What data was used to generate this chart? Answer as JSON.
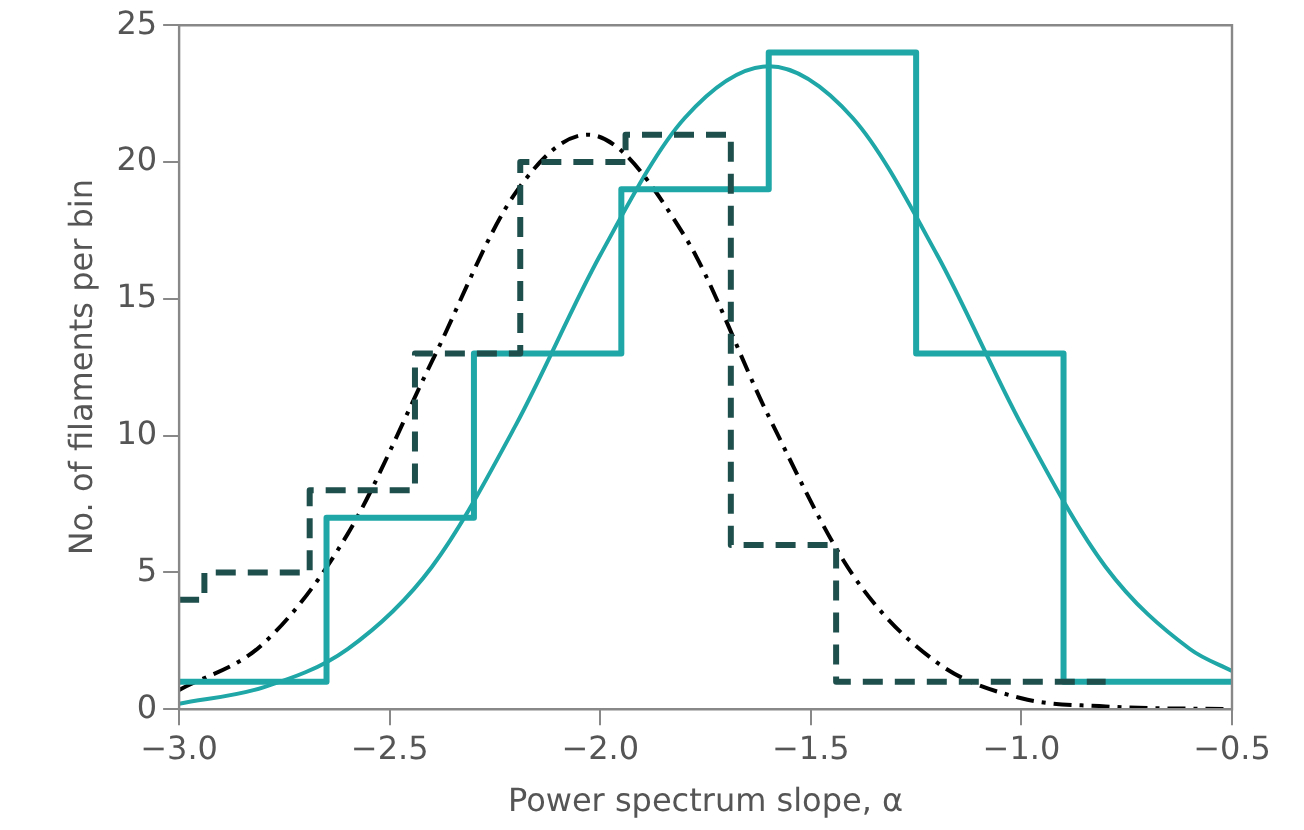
{
  "chart_data": {
    "type": "histogram",
    "xlabel": "Power spectrum slope, α",
    "ylabel": "No. of filaments per bin",
    "xlim": [
      -3.0,
      -0.5
    ],
    "ylim": [
      0,
      25
    ],
    "xticks": [
      {
        "value": -3.0,
        "label": "−3.0"
      },
      {
        "value": -2.5,
        "label": "−2.5"
      },
      {
        "value": -2.0,
        "label": "−2.0"
      },
      {
        "value": -1.5,
        "label": "−1.5"
      },
      {
        "value": -1.0,
        "label": "−1.0"
      },
      {
        "value": -0.5,
        "label": "−0.5"
      }
    ],
    "yticks": [
      0,
      5,
      10,
      15,
      20,
      25
    ],
    "grid": false,
    "legend": false,
    "series": [
      {
        "color": "#1f4f4c",
        "line_style": "dashed",
        "bins": [
          -3.0,
          -2.94,
          -2.69,
          -2.44,
          -2.19,
          -1.94,
          -1.69,
          -1.44,
          -0.8
        ],
        "values": [
          4,
          5,
          8,
          13,
          20,
          21,
          6,
          1
        ]
      },
      {
        "color": "#1fa6a6",
        "line_style": "solid",
        "bins": [
          -3.0,
          -2.65,
          -2.3,
          -1.95,
          -1.6,
          -1.25,
          -0.9,
          -0.5
        ],
        "values": [
          1,
          7,
          13,
          19,
          24,
          13,
          1
        ]
      },
      {
        "type": "line",
        "color": "#000000",
        "line_style": "dashdot",
        "x": [
          -3.0,
          -2.8,
          -2.6,
          -2.4,
          -2.2,
          -2.03,
          -1.8,
          -1.6,
          -1.4,
          -1.2,
          -1.0,
          -0.8,
          -0.5
        ],
        "values": [
          0.7,
          2.4,
          6.4,
          12.7,
          18.9,
          21,
          17.3,
          10.7,
          4.9,
          1.7,
          0.4,
          0.1,
          0
        ]
      },
      {
        "type": "line",
        "color": "#1fa6a6",
        "line_style": "solid",
        "x": [
          -3.0,
          -2.8,
          -2.6,
          -2.4,
          -2.2,
          -2.0,
          -1.8,
          -1.6,
          -1.4,
          -1.2,
          -1.0,
          -0.8,
          -0.6,
          -0.5
        ],
        "values": [
          0.2,
          0.8,
          2.2,
          5.2,
          10.4,
          16.6,
          21.6,
          23.5,
          21.6,
          16.6,
          10.4,
          5.2,
          2.2,
          1.4
        ]
      }
    ]
  }
}
